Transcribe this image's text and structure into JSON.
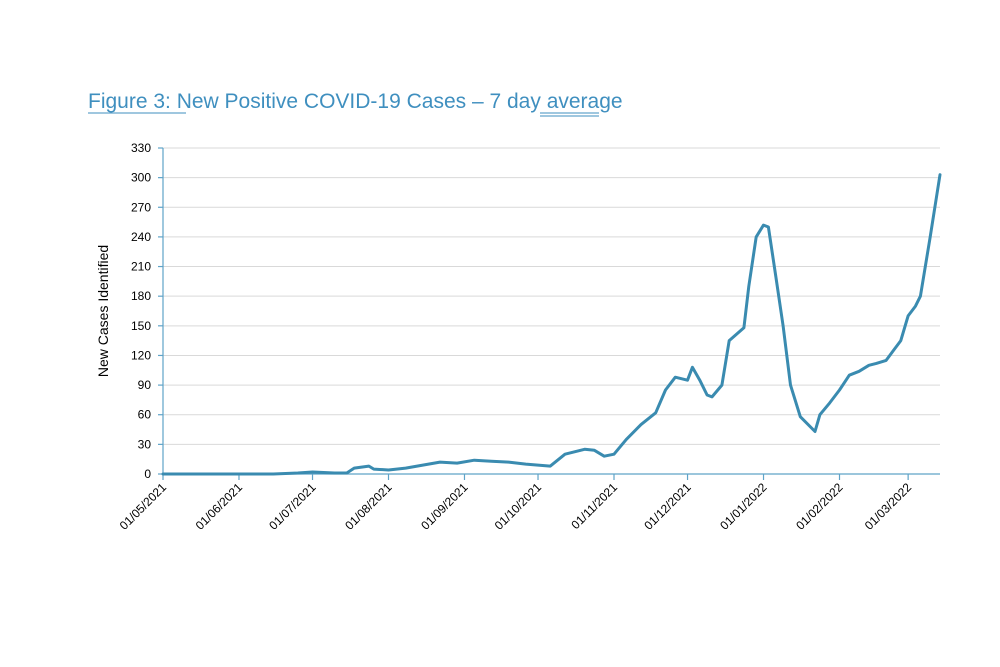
{
  "chart_data": {
    "type": "line",
    "title": "Figure 3: New Positive COVID-19 Cases – 7 day average",
    "y_label": "New Cases Identified",
    "xlim": [
      "01/05/2021",
      "14/03/2022"
    ],
    "xticks": [
      "01/05/2021",
      "01/06/2021",
      "01/07/2021",
      "01/08/2021",
      "01/09/2021",
      "01/10/2021",
      "01/11/2021",
      "01/12/2021",
      "01/01/2022",
      "01/02/2022",
      "01/03/2022"
    ],
    "ylim": [
      0,
      330
    ],
    "yticks": [
      0,
      30,
      60,
      90,
      120,
      150,
      180,
      210,
      240,
      270,
      300,
      330
    ],
    "grid": true,
    "series": [
      {
        "name": "7 day average",
        "color": "#3a8bb0",
        "x": [
          "01/05/2021",
          "01/06/2021",
          "15/06/2021",
          "25/06/2021",
          "01/07/2021",
          "10/07/2021",
          "15/07/2021",
          "18/07/2021",
          "24/07/2021",
          "26/07/2021",
          "01/08/2021",
          "08/08/2021",
          "15/08/2021",
          "22/08/2021",
          "29/08/2021",
          "05/09/2021",
          "12/09/2021",
          "19/09/2021",
          "26/09/2021",
          "01/10/2021",
          "06/10/2021",
          "12/10/2021",
          "20/10/2021",
          "24/10/2021",
          "28/10/2021",
          "01/11/2021",
          "06/11/2021",
          "12/11/2021",
          "18/11/2021",
          "22/11/2021",
          "26/11/2021",
          "01/12/2021",
          "03/12/2021",
          "06/12/2021",
          "09/12/2021",
          "11/12/2021",
          "15/12/2021",
          "18/12/2021",
          "24/12/2021",
          "26/12/2021",
          "29/12/2021",
          "01/01/2022",
          "03/01/2022",
          "06/01/2022",
          "09/01/2022",
          "12/01/2022",
          "16/01/2022",
          "22/01/2022",
          "24/01/2022",
          "28/01/2022",
          "01/02/2022",
          "05/02/2022",
          "09/02/2022",
          "13/02/2022",
          "16/02/2022",
          "20/02/2022",
          "23/02/2022",
          "26/02/2022",
          "01/03/2022",
          "04/03/2022",
          "06/03/2022",
          "10/03/2022",
          "14/03/2022"
        ],
        "values": [
          0,
          0,
          0,
          1,
          2,
          1,
          1,
          6,
          8,
          5,
          4,
          6,
          9,
          12,
          11,
          14,
          13,
          12,
          10,
          9,
          8,
          20,
          25,
          24,
          18,
          20,
          35,
          50,
          62,
          85,
          98,
          95,
          108,
          95,
          80,
          78,
          90,
          135,
          148,
          190,
          240,
          252,
          250,
          200,
          150,
          90,
          58,
          43,
          60,
          72,
          85,
          100,
          104,
          110,
          112,
          115,
          125,
          135,
          160,
          170,
          180,
          240,
          303
        ]
      }
    ]
  }
}
